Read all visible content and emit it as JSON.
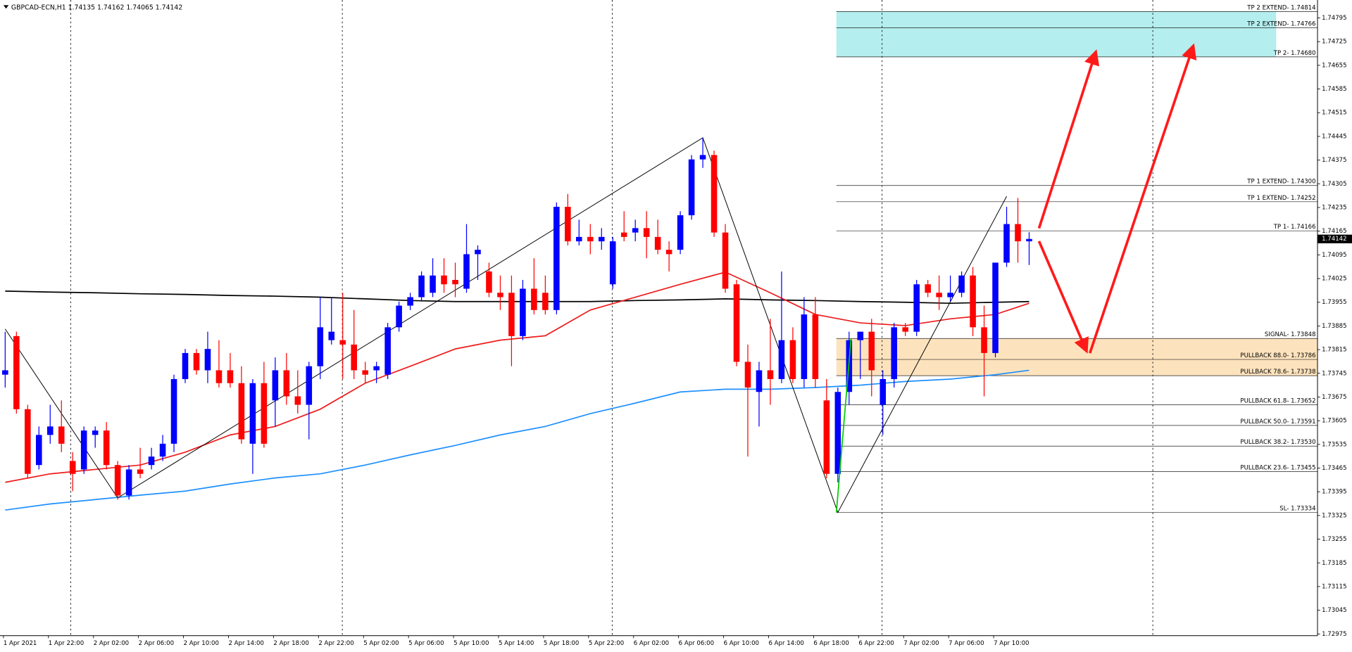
{
  "chart_data": {
    "type": "candlestick",
    "title": "GBPCAD-ECN,H1 1.74135 1.74162 1.74065 1.74142",
    "up_color": "#0000ff",
    "down_color": "#ff0000",
    "categories": [
      "1 Apr 2021",
      null,
      null,
      null,
      "1 Apr 22:00",
      null,
      null,
      null,
      "2 Apr 02:00",
      null,
      null,
      null,
      "2 Apr 06:00",
      null,
      null,
      null,
      "2 Apr 10:00",
      null,
      null,
      null,
      "2 Apr 14:00",
      null,
      null,
      null,
      "2 Apr 18:00",
      null,
      null,
      null,
      "2 Apr 22:00",
      null,
      null,
      null,
      "5 Apr 02:00",
      null,
      null,
      null,
      "5 Apr 06:00",
      null,
      null,
      null,
      "5 Apr 10:00",
      null,
      null,
      null,
      "5 Apr 14:00",
      null,
      null,
      null,
      "5 Apr 18:00",
      null,
      null,
      null,
      "5 Apr 22:00",
      null,
      null,
      null,
      "6 Apr 02:00",
      null,
      null,
      null,
      "6 Apr 06:00",
      null,
      null,
      null,
      "6 Apr 10:00",
      null,
      null,
      null,
      "6 Apr 14:00",
      null,
      null,
      null,
      "6 Apr 18:00",
      null,
      null,
      null,
      "6 Apr 22:00",
      null,
      null,
      null,
      "7 Apr 02:00",
      null,
      null,
      null,
      "7 Apr 06:00",
      null,
      null,
      null,
      "7 Apr 10:00",
      null,
      null,
      null
    ],
    "open": [
      1.73741,
      1.73855,
      1.73639,
      1.73474,
      1.73563,
      1.73588,
      1.73486,
      1.73461,
      1.73563,
      1.73576,
      1.73474,
      1.73384,
      1.73461,
      1.73474,
      1.73499,
      1.73537,
      1.73728,
      1.73805,
      1.73754,
      1.73754,
      1.73754,
      1.73716,
      1.73537,
      1.73716,
      1.73665,
      1.73754,
      1.73677,
      1.73652,
      1.73766,
      1.73843,
      1.73843,
      1.7383,
      1.73754,
      1.73754,
      1.73741,
      1.73881,
      1.73945,
      1.7397,
      1.73983,
      1.74034,
      1.74021,
      1.73995,
      1.74097,
      1.74046,
      1.73983,
      1.73983,
      1.73855,
      1.73995,
      1.73983,
      1.73932,
      1.74237,
      1.74135,
      1.74148,
      1.74135,
      1.74008,
      1.74161,
      1.74161,
      1.74174,
      1.74148,
      1.7411,
      1.7411,
      1.74212,
      1.74377,
      1.7439,
      1.74161,
      1.74008,
      1.73779,
      1.7369,
      1.73754,
      1.73728,
      1.73843,
      1.73728,
      1.73919,
      1.73665,
      1.73448,
      1.7369,
      1.73843,
      1.73868,
      1.73652,
      1.73728,
      1.73881,
      1.73868,
      1.74008,
      1.73983,
      1.7397,
      1.73983,
      1.74034,
      1.73881,
      1.73805,
      1.74072,
      1.74186,
      1.74135
    ],
    "high": [
      1.73868,
      1.73868,
      1.73652,
      1.73588,
      1.73652,
      1.73665,
      1.73512,
      1.73588,
      1.73588,
      1.73601,
      1.73486,
      1.73474,
      1.73525,
      1.73525,
      1.73563,
      1.73741,
      1.73817,
      1.73817,
      1.73868,
      1.73843,
      1.73805,
      1.73766,
      1.73728,
      1.73779,
      1.73792,
      1.73805,
      1.73754,
      1.73779,
      1.7397,
      1.7397,
      1.73983,
      1.73932,
      1.73779,
      1.73779,
      1.73894,
      1.73957,
      1.73983,
      1.74046,
      1.74085,
      1.74085,
      1.74072,
      1.74186,
      1.74123,
      1.74072,
      1.74034,
      1.74034,
      1.74021,
      1.74085,
      1.74034,
      1.7425,
      1.74275,
      1.74199,
      1.74186,
      1.74174,
      1.74148,
      1.74224,
      1.74199,
      1.74224,
      1.74199,
      1.74135,
      1.74224,
      1.7439,
      1.74441,
      1.74403,
      1.74186,
      1.74021,
      1.7383,
      1.73779,
      1.73906,
      1.74046,
      1.73881,
      1.7397,
      1.7397,
      1.73728,
      1.73703,
      1.73868,
      1.73868,
      1.73906,
      1.73754,
      1.73894,
      1.73894,
      1.74021,
      1.74021,
      1.74034,
      1.74034,
      1.74046,
      1.74059,
      1.73945,
      1.74072,
      1.74237,
      1.74263,
      1.74162
    ],
    "low": [
      1.73703,
      1.73626,
      1.73435,
      1.73461,
      1.73537,
      1.73512,
      1.73397,
      1.73448,
      1.73525,
      1.73461,
      1.73372,
      1.73372,
      1.73435,
      1.73461,
      1.73486,
      1.73512,
      1.73716,
      1.73741,
      1.73716,
      1.73703,
      1.73703,
      1.73537,
      1.73448,
      1.73525,
      1.73588,
      1.73652,
      1.73626,
      1.7355,
      1.73728,
      1.7383,
      1.73728,
      1.73728,
      1.73716,
      1.73716,
      1.73728,
      1.73868,
      1.73932,
      1.73957,
      1.7397,
      1.73983,
      1.7397,
      1.73983,
      1.74021,
      1.7397,
      1.73932,
      1.73766,
      1.73843,
      1.73919,
      1.73919,
      1.73919,
      1.74123,
      1.74123,
      1.74097,
      1.7411,
      1.73995,
      1.74135,
      1.74135,
      1.74085,
      1.74097,
      1.74046,
      1.74097,
      1.74199,
      1.74352,
      1.74148,
      1.73983,
      1.73766,
      1.73499,
      1.73588,
      1.73652,
      1.73716,
      1.73716,
      1.73703,
      1.73703,
      1.73435,
      1.73423,
      1.73652,
      1.73728,
      1.73677,
      1.73563,
      1.73703,
      1.73855,
      1.73855,
      1.7397,
      1.73932,
      1.73957,
      1.7397,
      1.73855,
      1.73677,
      1.73792,
      1.74059,
      1.74072,
      1.74065
    ],
    "close": [
      1.73754,
      1.73639,
      1.73448,
      1.73563,
      1.73588,
      1.73537,
      1.73448,
      1.73576,
      1.73576,
      1.73474,
      1.73384,
      1.73461,
      1.73448,
      1.73499,
      1.73537,
      1.73728,
      1.73805,
      1.73754,
      1.73817,
      1.73716,
      1.73716,
      1.7355,
      1.73716,
      1.73537,
      1.73754,
      1.73677,
      1.73652,
      1.73766,
      1.73881,
      1.73868,
      1.7383,
      1.73754,
      1.73741,
      1.73766,
      1.73881,
      1.73945,
      1.7397,
      1.74034,
      1.74034,
      1.74008,
      1.74008,
      1.74097,
      1.7411,
      1.73983,
      1.7397,
      1.73855,
      1.73995,
      1.73932,
      1.73932,
      1.74237,
      1.74135,
      1.74148,
      1.74135,
      1.74148,
      1.74135,
      1.74148,
      1.74174,
      1.74148,
      1.7411,
      1.74097,
      1.74212,
      1.74377,
      1.7439,
      1.74161,
      1.73995,
      1.73779,
      1.73703,
      1.73754,
      1.73728,
      1.73843,
      1.73728,
      1.73919,
      1.73728,
      1.73448,
      1.7369,
      1.73843,
      1.73868,
      1.73754,
      1.73728,
      1.73881,
      1.73868,
      1.74008,
      1.73983,
      1.7397,
      1.73983,
      1.74034,
      1.73881,
      1.73805,
      1.74072,
      1.74186,
      1.74135,
      1.74142
    ],
    "overlays": [
      {
        "color": "#000000",
        "x": [
          0,
          4,
          8,
          12,
          16,
          20,
          24,
          28,
          32,
          36,
          40,
          44,
          48,
          52,
          56,
          60,
          64,
          68,
          72,
          76,
          80,
          84,
          88,
          91
        ],
        "values": [
          1.73988,
          1.73985,
          1.73983,
          1.7398,
          1.73978,
          1.73975,
          1.73973,
          1.7397,
          1.73965,
          1.7396,
          1.73957,
          1.73957,
          1.73957,
          1.73957,
          1.7396,
          1.73962,
          1.73965,
          1.73962,
          1.7396,
          1.73957,
          1.73955,
          1.73952,
          1.73955,
          1.73957
        ]
      },
      {
        "color": "#ee1c1c",
        "x": [
          0,
          4,
          8,
          12,
          16,
          20,
          24,
          28,
          32,
          36,
          40,
          44,
          48,
          52,
          56,
          60,
          64,
          68,
          72,
          76,
          80,
          84,
          88,
          91
        ],
        "values": [
          1.73423,
          1.73448,
          1.73461,
          1.73474,
          1.73512,
          1.73563,
          1.73588,
          1.73639,
          1.73716,
          1.73766,
          1.73817,
          1.73843,
          1.73856,
          1.73932,
          1.7397,
          1.74008,
          1.74044,
          1.73983,
          1.73919,
          1.73894,
          1.73886,
          1.73906,
          1.73919,
          1.73952
        ]
      },
      {
        "color": "#1e90ff",
        "x": [
          0,
          4,
          8,
          12,
          16,
          20,
          24,
          28,
          32,
          36,
          40,
          44,
          48,
          52,
          56,
          60,
          64,
          68,
          72,
          76,
          80,
          84,
          88,
          91
        ],
        "values": [
          1.73341,
          1.73359,
          1.73372,
          1.73385,
          1.73397,
          1.73418,
          1.73436,
          1.73448,
          1.73474,
          1.73504,
          1.73532,
          1.73563,
          1.73588,
          1.73626,
          1.73657,
          1.7369,
          1.73698,
          1.73698,
          1.73703,
          1.7371,
          1.73721,
          1.73728,
          1.73741,
          1.73754
        ]
      }
    ],
    "zigzag": {
      "color": "#000000",
      "x": [
        0,
        10,
        62,
        74,
        89
      ],
      "values": [
        1.73876,
        1.73377,
        1.74441,
        1.73334,
        1.74268
      ]
    },
    "zones": [
      {
        "from": 1.74814,
        "to": 1.7468,
        "color": "#b4eeee"
      },
      {
        "from": 1.73848,
        "to": 1.73738,
        "color": "#fde3bd"
      }
    ],
    "levels": [
      {
        "value": 1.74814,
        "label": "TP 2 EXTEND- 1.74814"
      },
      {
        "value": 1.74766,
        "label": "TP 2 EXTEND- 1.74766"
      },
      {
        "value": 1.7468,
        "label": "TP 2- 1.74680"
      },
      {
        "value": 1.743,
        "label": "TP 1 EXTEND- 1.74300"
      },
      {
        "value": 1.74252,
        "label": "TP 1 EXTEND- 1.74252"
      },
      {
        "value": 1.74166,
        "label": "TP 1- 1.74166"
      },
      {
        "value": 1.73848,
        "label": "SIGNAL- 1.73848"
      },
      {
        "value": 1.73786,
        "label": "PULLBACK 88.0- 1.73786"
      },
      {
        "value": 1.73738,
        "label": "PULLBACK 78.6- 1.73738"
      },
      {
        "value": 1.73652,
        "label": "PULLBACK 61.8- 1.73652"
      },
      {
        "value": 1.73591,
        "label": "PULLBACK 50.0- 1.73591"
      },
      {
        "value": 1.7353,
        "label": "PULLBACK 38.2- 1.73530"
      },
      {
        "value": 1.73455,
        "label": "PULLBACK 23.6- 1.73455"
      },
      {
        "value": 1.73334,
        "label": "SL- 1.73334"
      }
    ],
    "current_price": 1.74142,
    "ylim": [
      1.7297,
      1.74848
    ],
    "yticks": [
      1.72975,
      1.73045,
      1.73115,
      1.73185,
      1.73255,
      1.73325,
      1.73395,
      1.73465,
      1.73535,
      1.73605,
      1.73675,
      1.73745,
      1.73815,
      1.73885,
      1.73955,
      1.74025,
      1.74095,
      1.74165,
      1.74235,
      1.74305,
      1.74375,
      1.74445,
      1.74515,
      1.74585,
      1.74655,
      1.74725,
      1.74795
    ]
  }
}
